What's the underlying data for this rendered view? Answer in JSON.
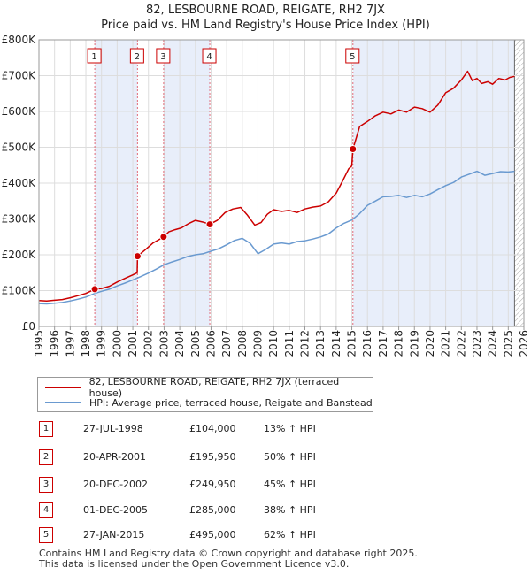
{
  "title_line1": "82, LESBOURNE ROAD, REIGATE, RH2 7JX",
  "title_line2": "Price paid vs. HM Land Registry's House Price Index (HPI)",
  "legend": {
    "property_label": "82, LESBOURNE ROAD, REIGATE, RH2 7JX (terraced house)",
    "hpi_label": "HPI: Average price, terraced house, Reigate and Banstead"
  },
  "transactions": [
    {
      "num": "1",
      "date": "27-JUL-1998",
      "price": "£104,000",
      "hpi": "13% ↑ HPI"
    },
    {
      "num": "2",
      "date": "20-APR-2001",
      "price": "£195,950",
      "hpi": "50% ↑ HPI"
    },
    {
      "num": "3",
      "date": "20-DEC-2002",
      "price": "£249,950",
      "hpi": "45% ↑ HPI"
    },
    {
      "num": "4",
      "date": "01-DEC-2005",
      "price": "£285,000",
      "hpi": "38% ↑ HPI"
    },
    {
      "num": "5",
      "date": "27-JAN-2015",
      "price": "£495,000",
      "hpi": "62% ↑ HPI"
    }
  ],
  "footer_line1": "Contains HM Land Registry data © Crown copyright and database right 2025.",
  "footer_line2": "This data is licensed under the Open Government Licence v3.0.",
  "colors": {
    "property": "#cc0000",
    "hpi": "#6a9ad0",
    "shade": "#e8eefa",
    "grid": "#dddddd",
    "vline": "#e06a78",
    "future_hatch": "#999999"
  },
  "chart_data": {
    "type": "line",
    "xlim": [
      1995,
      2026
    ],
    "ylim": [
      0,
      800000
    ],
    "x_ticks": [
      1995,
      1996,
      1997,
      1998,
      1999,
      2000,
      2001,
      2002,
      2003,
      2004,
      2005,
      2006,
      2007,
      2008,
      2009,
      2010,
      2011,
      2012,
      2013,
      2014,
      2015,
      2016,
      2017,
      2018,
      2019,
      2020,
      2021,
      2022,
      2023,
      2024,
      2025,
      2026
    ],
    "y_ticks": [
      {
        "value": 0,
        "label": "£0"
      },
      {
        "value": 100000,
        "label": "£100K"
      },
      {
        "value": 200000,
        "label": "£200K"
      },
      {
        "value": 300000,
        "label": "£300K"
      },
      {
        "value": 400000,
        "label": "£400K"
      },
      {
        "value": 500000,
        "label": "£500K"
      },
      {
        "value": 600000,
        "label": "£600K"
      },
      {
        "value": 700000,
        "label": "£700K"
      },
      {
        "value": 800000,
        "label": "£800K"
      }
    ],
    "shaded_ranges": [
      [
        1998.57,
        2001.3
      ],
      [
        2002.97,
        2005.92
      ],
      [
        2015.07,
        2025.4
      ]
    ],
    "data_end": 2025.4,
    "markers": [
      {
        "label": "1",
        "x": 1998.57,
        "y": 104000
      },
      {
        "label": "2",
        "x": 2001.3,
        "y": 195950
      },
      {
        "label": "3",
        "x": 2002.97,
        "y": 249950
      },
      {
        "label": "4",
        "x": 2005.92,
        "y": 285000
      },
      {
        "label": "5",
        "x": 2015.07,
        "y": 495000
      }
    ],
    "series": [
      {
        "name": "82, LESBOURNE ROAD, REIGATE, RH2 7JX (terraced house)",
        "x": [
          1995.0,
          1995.5,
          1996.0,
          1996.5,
          1997.0,
          1997.5,
          1998.0,
          1998.57,
          1999.0,
          1999.5,
          2000.0,
          2000.5,
          2001.0,
          2001.28,
          2001.3,
          2001.8,
          2002.3,
          2002.97,
          2003.3,
          2003.7,
          2004.1,
          2004.6,
          2005.0,
          2005.5,
          2005.92,
          2006.4,
          2006.9,
          2007.4,
          2007.9,
          2008.3,
          2008.8,
          2009.2,
          2009.6,
          2010.0,
          2010.5,
          2011.0,
          2011.5,
          2012.0,
          2012.5,
          2013.0,
          2013.5,
          2014.0,
          2014.4,
          2014.8,
          2015.0,
          2015.07,
          2015.5,
          2016.0,
          2016.5,
          2017.0,
          2017.5,
          2018.0,
          2018.5,
          2019.0,
          2019.5,
          2020.0,
          2020.5,
          2021.0,
          2021.5,
          2022.0,
          2022.4,
          2022.7,
          2023.0,
          2023.3,
          2023.7,
          2024.0,
          2024.4,
          2024.8,
          2025.1,
          2025.4
        ],
        "y": [
          72000,
          71000,
          73000,
          75000,
          80000,
          86000,
          92000,
          104000,
          106000,
          112000,
          124000,
          134000,
          144000,
          150000,
          195950,
          214000,
          233000,
          249950,
          264000,
          270000,
          275000,
          288000,
          296000,
          291000,
          285000,
          296000,
          318000,
          328000,
          332000,
          312000,
          283000,
          290000,
          313000,
          326000,
          321000,
          324000,
          318000,
          328000,
          333000,
          336000,
          348000,
          372000,
          405000,
          440000,
          448000,
          495000,
          558000,
          572000,
          588000,
          598000,
          593000,
          604000,
          598000,
          612000,
          608000,
          598000,
          618000,
          652000,
          665000,
          688000,
          712000,
          686000,
          692000,
          678000,
          683000,
          676000,
          692000,
          688000,
          695000,
          698000
        ]
      },
      {
        "name": "HPI: Average price, terraced house, Reigate and Banstead",
        "x": [
          1995.0,
          1995.5,
          1996.0,
          1996.5,
          1997.0,
          1997.5,
          1998.0,
          1998.57,
          1999.0,
          1999.5,
          2000.0,
          2000.5,
          2001.0,
          2001.5,
          2002.0,
          2002.5,
          2003.0,
          2003.5,
          2004.0,
          2004.5,
          2005.0,
          2005.5,
          2006.0,
          2006.5,
          2007.0,
          2007.5,
          2008.0,
          2008.5,
          2009.0,
          2009.5,
          2010.0,
          2010.5,
          2011.0,
          2011.5,
          2012.0,
          2012.5,
          2013.0,
          2013.5,
          2014.0,
          2014.5,
          2015.0,
          2015.5,
          2016.0,
          2016.5,
          2017.0,
          2017.5,
          2018.0,
          2018.5,
          2019.0,
          2019.5,
          2020.0,
          2020.5,
          2021.0,
          2021.5,
          2022.0,
          2022.5,
          2023.0,
          2023.5,
          2024.0,
          2024.5,
          2025.0,
          2025.4
        ],
        "y": [
          64000,
          63000,
          65000,
          67000,
          71000,
          76000,
          82000,
          92000,
          98000,
          104000,
          113000,
          121000,
          130000,
          139000,
          149000,
          160000,
          172000,
          180000,
          187000,
          195000,
          200000,
          203000,
          210000,
          217000,
          228000,
          240000,
          246000,
          232000,
          203000,
          215000,
          230000,
          233000,
          230000,
          237000,
          239000,
          244000,
          250000,
          258000,
          275000,
          288000,
          297000,
          315000,
          338000,
          350000,
          362000,
          363000,
          366000,
          360000,
          366000,
          362000,
          370000,
          382000,
          393000,
          402000,
          417000,
          425000,
          433000,
          422000,
          427000,
          432000,
          431000,
          433000
        ]
      }
    ]
  }
}
